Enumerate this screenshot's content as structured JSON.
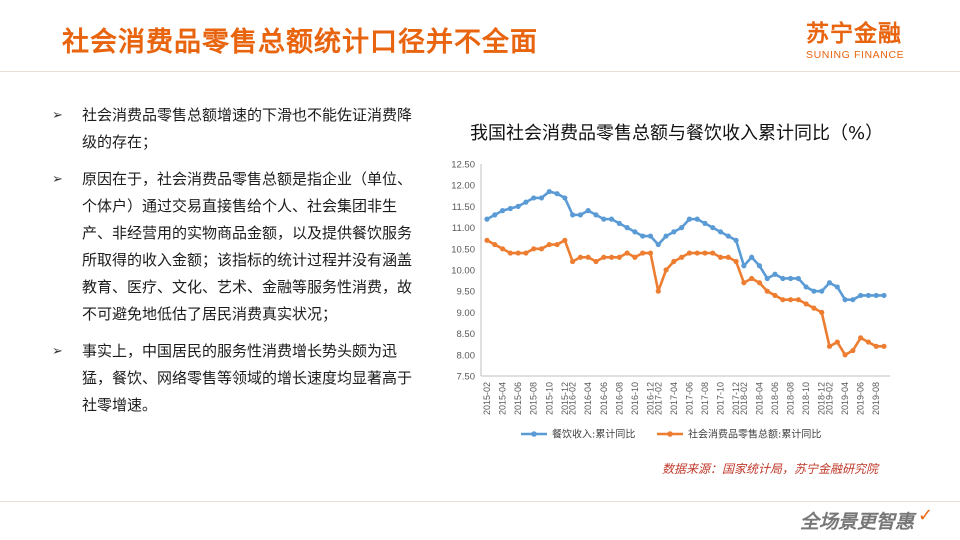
{
  "header": {
    "title": "社会消费品零售总额统计口径并不全面",
    "logo_cn": "苏宁金融",
    "logo_en": "SUNING FINANCE"
  },
  "bullets": [
    "社会消费品零售总额增速的下滑也不能佐证消费降级的存在；",
    "原因在于，社会消费品零售总额是指企业（单位、个体户）通过交易直接售给个人、社会集团非生产、非经营用的实物商品金额，以及提供餐饮服务所取得的收入金额；该指标的统计过程并没有涵盖教育、医疗、文化、艺术、金融等服务性消费，故不可避免地低估了居民消费真实状况；",
    "事实上，中国居民的服务性消费增长势头颇为迅猛，餐饮、网络零售等领域的增长速度均显著高于社零增速。"
  ],
  "bullet_symbol": "➢",
  "source": "数据来源：国家统计局，苏宁金融研究院",
  "footer": {
    "slogan": "全场景更智惠",
    "check_mark": "✓"
  },
  "chart_data": {
    "type": "line",
    "title": "我国社会消费品零售总额与餐饮收入累计同比（%）",
    "xlabel": "",
    "ylabel": "",
    "ylim": [
      7.5,
      12.5
    ],
    "yticks": [
      "7.50",
      "8.00",
      "8.50",
      "9.00",
      "9.50",
      "10.00",
      "10.50",
      "11.00",
      "11.50",
      "12.00",
      "12.50"
    ],
    "x": [
      "2015-02",
      "2015-03",
      "2015-04",
      "2015-05",
      "2015-06",
      "2015-07",
      "2015-08",
      "2015-09",
      "2015-10",
      "2015-11",
      "2015-12",
      "2016-02",
      "2016-03",
      "2016-04",
      "2016-05",
      "2016-06",
      "2016-07",
      "2016-08",
      "2016-09",
      "2016-10",
      "2016-11",
      "2016-12",
      "2017-02",
      "2017-03",
      "2017-04",
      "2017-05",
      "2017-06",
      "2017-07",
      "2017-08",
      "2017-09",
      "2017-10",
      "2017-11",
      "2017-12",
      "2018-02",
      "2018-03",
      "2018-04",
      "2018-05",
      "2018-06",
      "2018-07",
      "2018-08",
      "2018-09",
      "2018-10",
      "2018-11",
      "2018-12",
      "2019-02",
      "2019-03",
      "2019-04",
      "2019-05",
      "2019-06",
      "2019-07",
      "2019-08",
      "2019-09"
    ],
    "xtick_labels": [
      "2015-02",
      "2015-04",
      "2015-06",
      "2015-08",
      "2015-10",
      "2015-12",
      "2016-02",
      "2016-04",
      "2016-06",
      "2016-08",
      "2016-10",
      "2016-12",
      "2017-02",
      "2017-04",
      "2017-06",
      "2017-08",
      "2017-10",
      "2017-12",
      "2018-02",
      "2018-04",
      "2018-06",
      "2018-08",
      "2018-10",
      "2018-12",
      "2019-02",
      "2019-04",
      "2019-06",
      "2019-08"
    ],
    "series": [
      {
        "name": "餐饮收入:累计同比",
        "color": "#5b9bd5",
        "values": [
          11.2,
          11.3,
          11.4,
          11.45,
          11.5,
          11.6,
          11.7,
          11.7,
          11.85,
          11.8,
          11.7,
          11.3,
          11.3,
          11.4,
          11.3,
          11.2,
          11.2,
          11.1,
          11.0,
          10.9,
          10.8,
          10.8,
          10.6,
          10.8,
          10.9,
          11.0,
          11.2,
          11.2,
          11.1,
          11.0,
          10.9,
          10.8,
          10.7,
          10.1,
          10.3,
          10.1,
          9.8,
          9.9,
          9.8,
          9.8,
          9.8,
          9.6,
          9.5,
          9.5,
          9.7,
          9.6,
          9.3,
          9.3,
          9.4,
          9.4,
          9.4,
          9.4
        ]
      },
      {
        "name": "社会消费品零售总额:累计同比",
        "color": "#ed7d31",
        "values": [
          10.7,
          10.6,
          10.5,
          10.4,
          10.4,
          10.4,
          10.5,
          10.5,
          10.6,
          10.6,
          10.7,
          10.2,
          10.3,
          10.3,
          10.2,
          10.3,
          10.3,
          10.3,
          10.4,
          10.3,
          10.4,
          10.4,
          9.5,
          10.0,
          10.2,
          10.3,
          10.4,
          10.4,
          10.4,
          10.4,
          10.3,
          10.3,
          10.2,
          9.7,
          9.8,
          9.7,
          9.5,
          9.4,
          9.3,
          9.3,
          9.3,
          9.2,
          9.1,
          9.0,
          8.2,
          8.3,
          8.0,
          8.1,
          8.4,
          8.3,
          8.2,
          8.2
        ]
      }
    ],
    "legend_position": "bottom",
    "grid": false
  }
}
